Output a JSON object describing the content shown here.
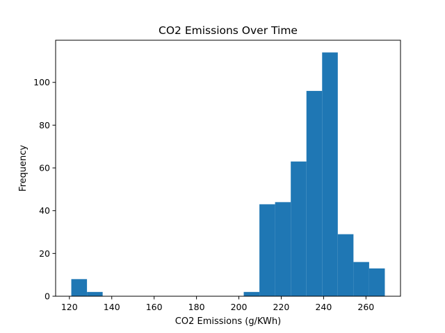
{
  "chart_data": {
    "type": "bar",
    "title": "CO2 Emissions Over Time",
    "xlabel": "CO2 Emissions (g/KWh)",
    "ylabel": "Frequency",
    "bins": [
      {
        "start": 120.9,
        "end": 128.3,
        "count": 8
      },
      {
        "start": 128.3,
        "end": 135.7,
        "count": 2
      },
      {
        "start": 135.7,
        "end": 143.1,
        "count": 0
      },
      {
        "start": 143.1,
        "end": 150.5,
        "count": 0
      },
      {
        "start": 150.5,
        "end": 157.9,
        "count": 0
      },
      {
        "start": 157.9,
        "end": 165.3,
        "count": 0
      },
      {
        "start": 165.3,
        "end": 172.7,
        "count": 0
      },
      {
        "start": 172.7,
        "end": 180.1,
        "count": 0
      },
      {
        "start": 180.1,
        "end": 187.5,
        "count": 0
      },
      {
        "start": 187.5,
        "end": 194.9,
        "count": 0
      },
      {
        "start": 194.9,
        "end": 202.3,
        "count": 0
      },
      {
        "start": 202.3,
        "end": 209.7,
        "count": 2
      },
      {
        "start": 209.7,
        "end": 217.1,
        "count": 43
      },
      {
        "start": 217.1,
        "end": 224.5,
        "count": 44
      },
      {
        "start": 224.5,
        "end": 231.9,
        "count": 63
      },
      {
        "start": 231.9,
        "end": 239.3,
        "count": 96
      },
      {
        "start": 239.3,
        "end": 246.7,
        "count": 114
      },
      {
        "start": 246.7,
        "end": 254.1,
        "count": 29
      },
      {
        "start": 254.1,
        "end": 261.5,
        "count": 16
      },
      {
        "start": 261.5,
        "end": 268.9,
        "count": 13
      }
    ],
    "xlim": [
      113.5,
      276.3
    ],
    "ylim": [
      0,
      119.7
    ],
    "xticks": [
      120,
      140,
      160,
      180,
      200,
      220,
      240,
      260
    ],
    "yticks": [
      0,
      20,
      40,
      60,
      80,
      100
    ],
    "bar_color": "#1f77b4",
    "grid": false,
    "legend": "none"
  }
}
